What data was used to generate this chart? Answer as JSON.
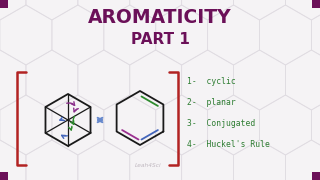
{
  "title_line1": "AROMATICITY",
  "title_line2": "PART 1",
  "title_color": "#6B1058",
  "bg_color": "#F5F3F5",
  "hex_line_color": "#E0DCE2",
  "list_items": [
    "1-  cyclic",
    "2-  planar",
    "3-  Conjugated",
    "4-  Huckel's Rule"
  ],
  "list_color": "#2E7D32",
  "bracket_color": "#B22222",
  "double_arrow_color": "#6688CC",
  "corner_color": "#6B1058",
  "watermark": "Leah4Sci",
  "watermark_color": "#C0B8C0",
  "hex_outline_color": "#1A1A1A",
  "arrow_purple": "#8B2F8B",
  "arrow_green": "#2E8B2E",
  "arrow_blue_left": "#4466BB",
  "double_bond_top": "#9B3090",
  "double_bond_mid": "#4466BB",
  "double_bond_bot": "#2E8B2E"
}
